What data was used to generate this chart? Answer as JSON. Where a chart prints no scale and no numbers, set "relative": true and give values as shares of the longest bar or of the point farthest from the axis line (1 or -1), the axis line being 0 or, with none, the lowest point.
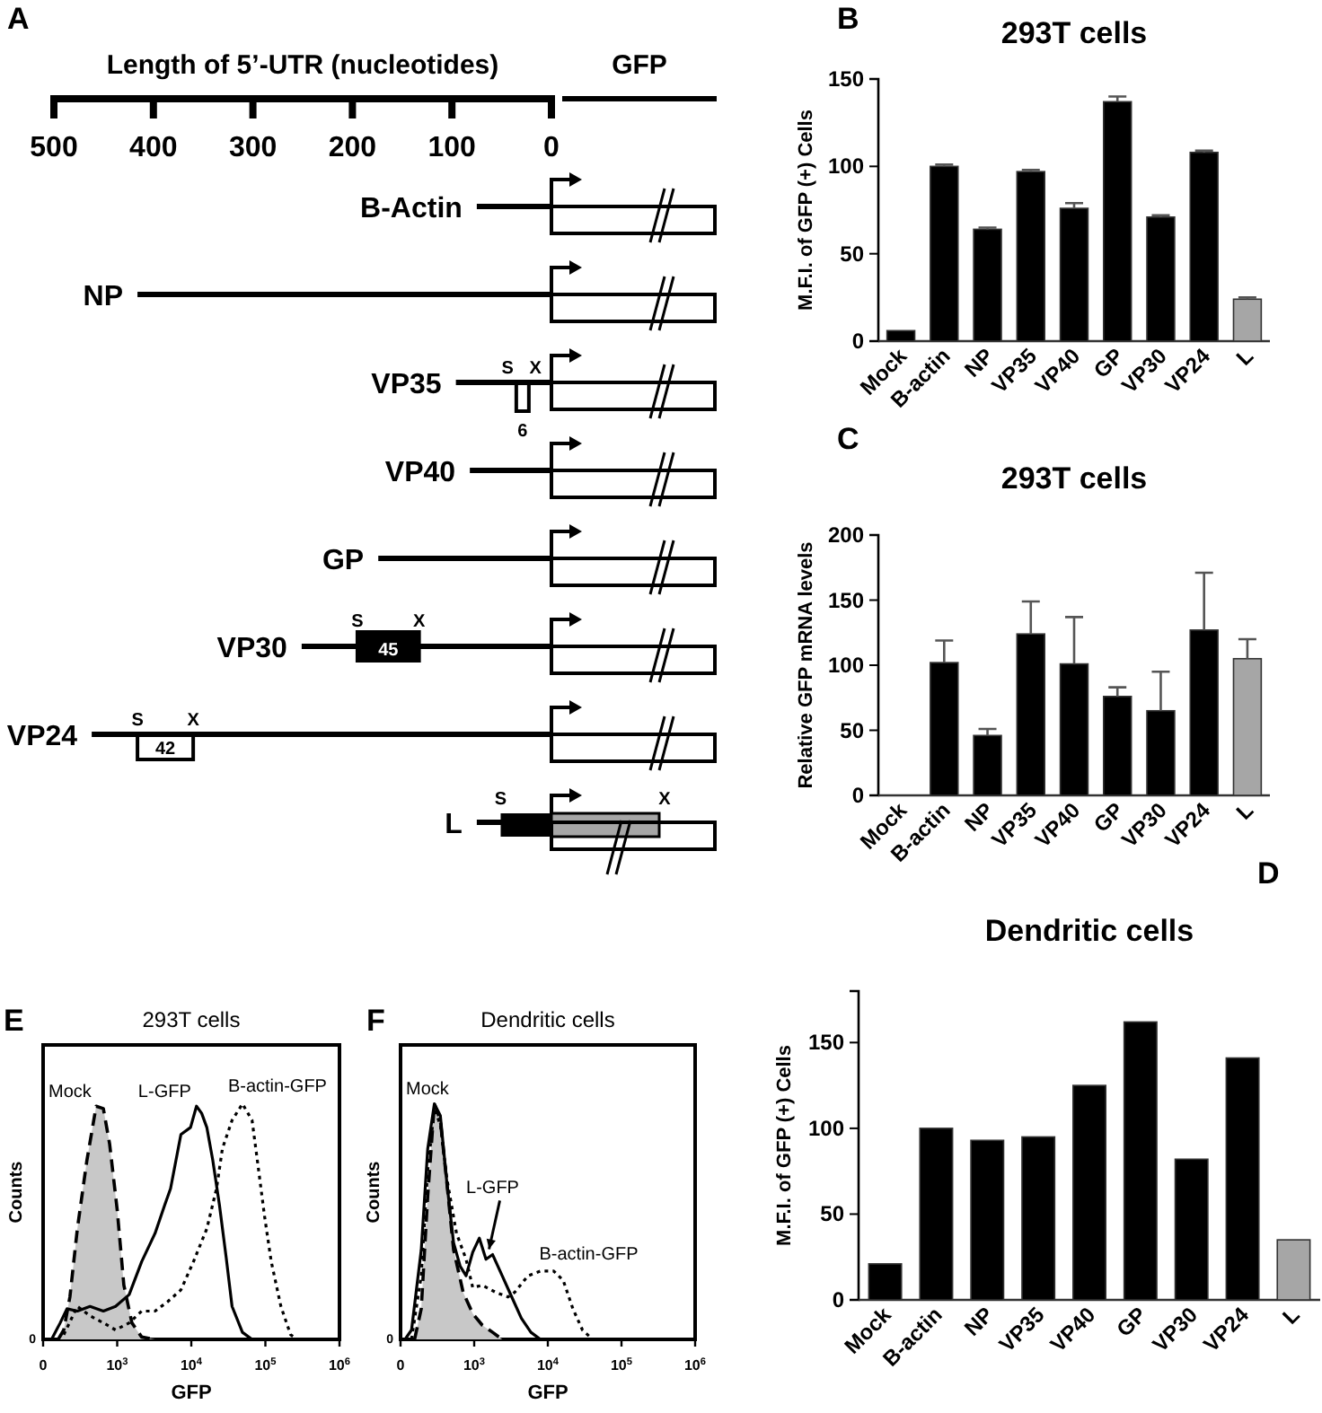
{
  "chart_data": [
    {
      "type": "bar",
      "orientation": "horizontal",
      "xlabel": "Length of 5’-UTR (nucleotides)",
      "categories": [
        "B-Actin",
        "NP",
        "VP35",
        "VP40",
        "GP",
        "VP30",
        "VP24",
        "L"
      ],
      "values": [
        75,
        416,
        96,
        82,
        174,
        251,
        462,
        75
      ],
      "color": "#000000",
      "xlim": [
        500,
        0
      ],
      "xticks": [
        500,
        400,
        300,
        200,
        100,
        0
      ],
      "annotations": [
        "A",
        "GFP",
        {
          "text": "S",
          "x": 44,
          "y": "VP35"
        },
        {
          "text": "6",
          "x": 29,
          "y": "VP35"
        },
        {
          "text": "X",
          "x": 16,
          "y": "VP35"
        },
        {
          "text": "S",
          "x": 195,
          "y": "VP30"
        },
        {
          "text": "45",
          "x": 164,
          "y": "VP30"
        },
        {
          "text": "X",
          "x": 133,
          "y": "VP30"
        },
        {
          "text": "S",
          "x": 416,
          "y": "VP24"
        },
        {
          "text": "42",
          "x": 388,
          "y": "VP24"
        },
        {
          "text": "X",
          "x": 360,
          "y": "VP24"
        },
        {
          "text": "S",
          "x": 51,
          "y": "L"
        },
        "X"
      ]
    },
    {
      "type": "bar",
      "title": "293T cells",
      "ylabel": "M.F.I. of GFP (+) Cells",
      "categories": [
        "Mock",
        "B-actin",
        "NP",
        "VP35",
        "VP40",
        "GP",
        "VP30",
        "VP24",
        "L"
      ],
      "values": [
        6,
        100,
        64,
        97,
        76,
        137,
        71,
        108,
        24
      ],
      "errors": [
        null,
        1,
        1,
        1,
        3,
        3,
        1,
        1,
        1
      ],
      "colors": [
        "#000000",
        "#000000",
        "#000000",
        "#000000",
        "#000000",
        "#000000",
        "#000000",
        "#000000",
        "#a6a6a6"
      ],
      "ylim": [
        0,
        150
      ],
      "yticks": [
        0,
        50,
        100,
        150
      ],
      "annotations": [
        "B"
      ]
    },
    {
      "type": "bar",
      "title": "293T cells",
      "ylabel": "Relative GFP mRNA levels",
      "categories": [
        "Mock",
        "B-actin",
        "NP",
        "VP35",
        "VP40",
        "GP",
        "VP30",
        "VP24",
        "L"
      ],
      "values": [
        null,
        102,
        46,
        124,
        101,
        76,
        65,
        127,
        105
      ],
      "errors": [
        null,
        17,
        5,
        25,
        36,
        7,
        30,
        44,
        15
      ],
      "colors": [
        null,
        "#000000",
        "#000000",
        "#000000",
        "#000000",
        "#000000",
        "#000000",
        "#000000",
        "#a6a6a6"
      ],
      "ylim": [
        0,
        200
      ],
      "yticks": [
        0,
        50,
        100,
        150,
        200
      ],
      "annotations": [
        "C"
      ]
    },
    {
      "type": "bar",
      "title": "Dendritic cells",
      "ylabel": "M.F.I. of GFP (+) Cells",
      "categories": [
        "Mock",
        "B-actin",
        "NP",
        "VP35",
        "VP40",
        "GP",
        "VP30",
        "VP24",
        "L"
      ],
      "values": [
        21,
        100,
        93,
        95,
        125,
        162,
        82,
        141,
        35
      ],
      "colors": [
        "#000000",
        "#000000",
        "#000000",
        "#000000",
        "#000000",
        "#000000",
        "#000000",
        "#000000",
        "#a6a6a6"
      ],
      "ylim": [
        0,
        180
      ],
      "yticks": [
        0,
        50,
        100,
        150
      ],
      "annotations": [
        "D"
      ]
    },
    {
      "type": "line",
      "title": "293T cells",
      "xlabel": "GFP",
      "ylabel": "Counts",
      "relative": true,
      "log": "x",
      "xlim": [
        0,
        1000000
      ],
      "xticks": [
        0,
        {
          "value": 1000,
          "label": "10$^{3}$"
        },
        {
          "value": 10000,
          "label": "10$^{4}$"
        },
        {
          "value": 100000,
          "label": "10$^{5}$"
        },
        {
          "value": 1000000,
          "label": "10$^{6}$"
        }
      ],
      "series": [
        {
          "name": "Mock",
          "type": "area",
          "color": "#c8c8c8",
          "line_style": "dashed",
          "x": [
            160,
            190,
            230,
            290,
            390,
            520,
            650,
            790,
            1000,
            1230,
            1580,
            2140,
            3240
          ],
          "values": [
            0,
            0.04,
            0.18,
            0.47,
            0.76,
            0.99,
            0.98,
            0.83,
            0.55,
            0.23,
            0.07,
            0.01,
            0
          ]
        },
        {
          "name": "L-GFP",
          "color": "#000000",
          "line_style": "solid",
          "x": [
            130,
            170,
            210,
            290,
            430,
            650,
            950,
            1450,
            2140,
            3240,
            4370,
            5250,
            7240,
            9770,
            11750,
            13800,
            16200,
            19500,
            24000,
            29500,
            35500,
            49000,
            66100
          ],
          "values": [
            0,
            0.07,
            0.13,
            0.12,
            0.14,
            0.12,
            0.14,
            0.19,
            0.33,
            0.45,
            0.57,
            0.64,
            0.87,
            0.9,
            0.99,
            0.96,
            0.9,
            0.76,
            0.57,
            0.35,
            0.14,
            0.03,
            0
          ]
        },
        {
          "name": "B-actin-GFP",
          "color": "#000000",
          "line_style": "dotted",
          "x": [
            190,
            290,
            430,
            650,
            950,
            1450,
            2140,
            3240,
            4790,
            7240,
            10700,
            16200,
            21900,
            26300,
            35500,
            49000,
            66100,
            79400,
            97700,
            120000,
            162000,
            219000,
            269000
          ],
          "values": [
            0.02,
            0.14,
            0.1,
            0.07,
            0.04,
            0.07,
            0.12,
            0.12,
            0.16,
            0.21,
            0.33,
            0.47,
            0.64,
            0.81,
            0.93,
            1,
            0.93,
            0.74,
            0.52,
            0.33,
            0.14,
            0.02,
            0
          ]
        }
      ],
      "annotations": [
        "E",
        "0"
      ]
    },
    {
      "type": "line",
      "title": "Dendritic cells",
      "xlabel": "GFP",
      "ylabel": "Counts",
      "relative": true,
      "log": "x",
      "xlim": [
        0,
        1000000
      ],
      "xticks": [
        0,
        {
          "value": 1000,
          "label": "10$^{3}$"
        },
        {
          "value": 10000,
          "label": "10$^{4}$"
        },
        {
          "value": 100000,
          "label": "10$^{5}$"
        },
        {
          "value": 1000000,
          "label": "10$^{6}$"
        }
      ],
      "series": [
        {
          "name": "Mock",
          "type": "area",
          "color": "#c8c8c8",
          "line_style": "dashed",
          "x": [
            155,
            191,
            234,
            288,
            347,
            427,
            525,
            708,
            955,
            1290,
            1780,
            2400
          ],
          "values": [
            0,
            0.13,
            0.61,
            1,
            0.93,
            0.66,
            0.38,
            0.2,
            0.11,
            0.06,
            0.03,
            0
          ]
        },
        {
          "name": "L-GFP",
          "color": "#000000",
          "line_style": "solid",
          "x": [
            115,
            141,
            191,
            234,
            288,
            347,
            427,
            525,
            646,
            776,
            955,
            1175,
            1445,
            1780,
            2400,
            3236,
            4365,
            5890,
            7940
          ],
          "values": [
            0,
            0.04,
            0.38,
            0.81,
            1,
            0.95,
            0.66,
            0.41,
            0.31,
            0.27,
            0.37,
            0.43,
            0.34,
            0.36,
            0.27,
            0.18,
            0.09,
            0.03,
            0
          ]
        },
        {
          "name": "B-actin-GFP",
          "color": "#000000",
          "line_style": "dotted",
          "x": [
            141,
            191,
            234,
            288,
            347,
            427,
            575,
            776,
            955,
            1290,
            1950,
            2880,
            3550,
            5370,
            7940,
            12000,
            16200,
            21900,
            29500,
            40700
          ],
          "values": [
            0,
            0.27,
            0.72,
            0.98,
            0.91,
            0.68,
            0.45,
            0.34,
            0.22,
            0.23,
            0.2,
            0.18,
            0.2,
            0.27,
            0.29,
            0.29,
            0.25,
            0.13,
            0.04,
            0
          ]
        }
      ],
      "annotations": [
        "F",
        "0"
      ]
    }
  ]
}
